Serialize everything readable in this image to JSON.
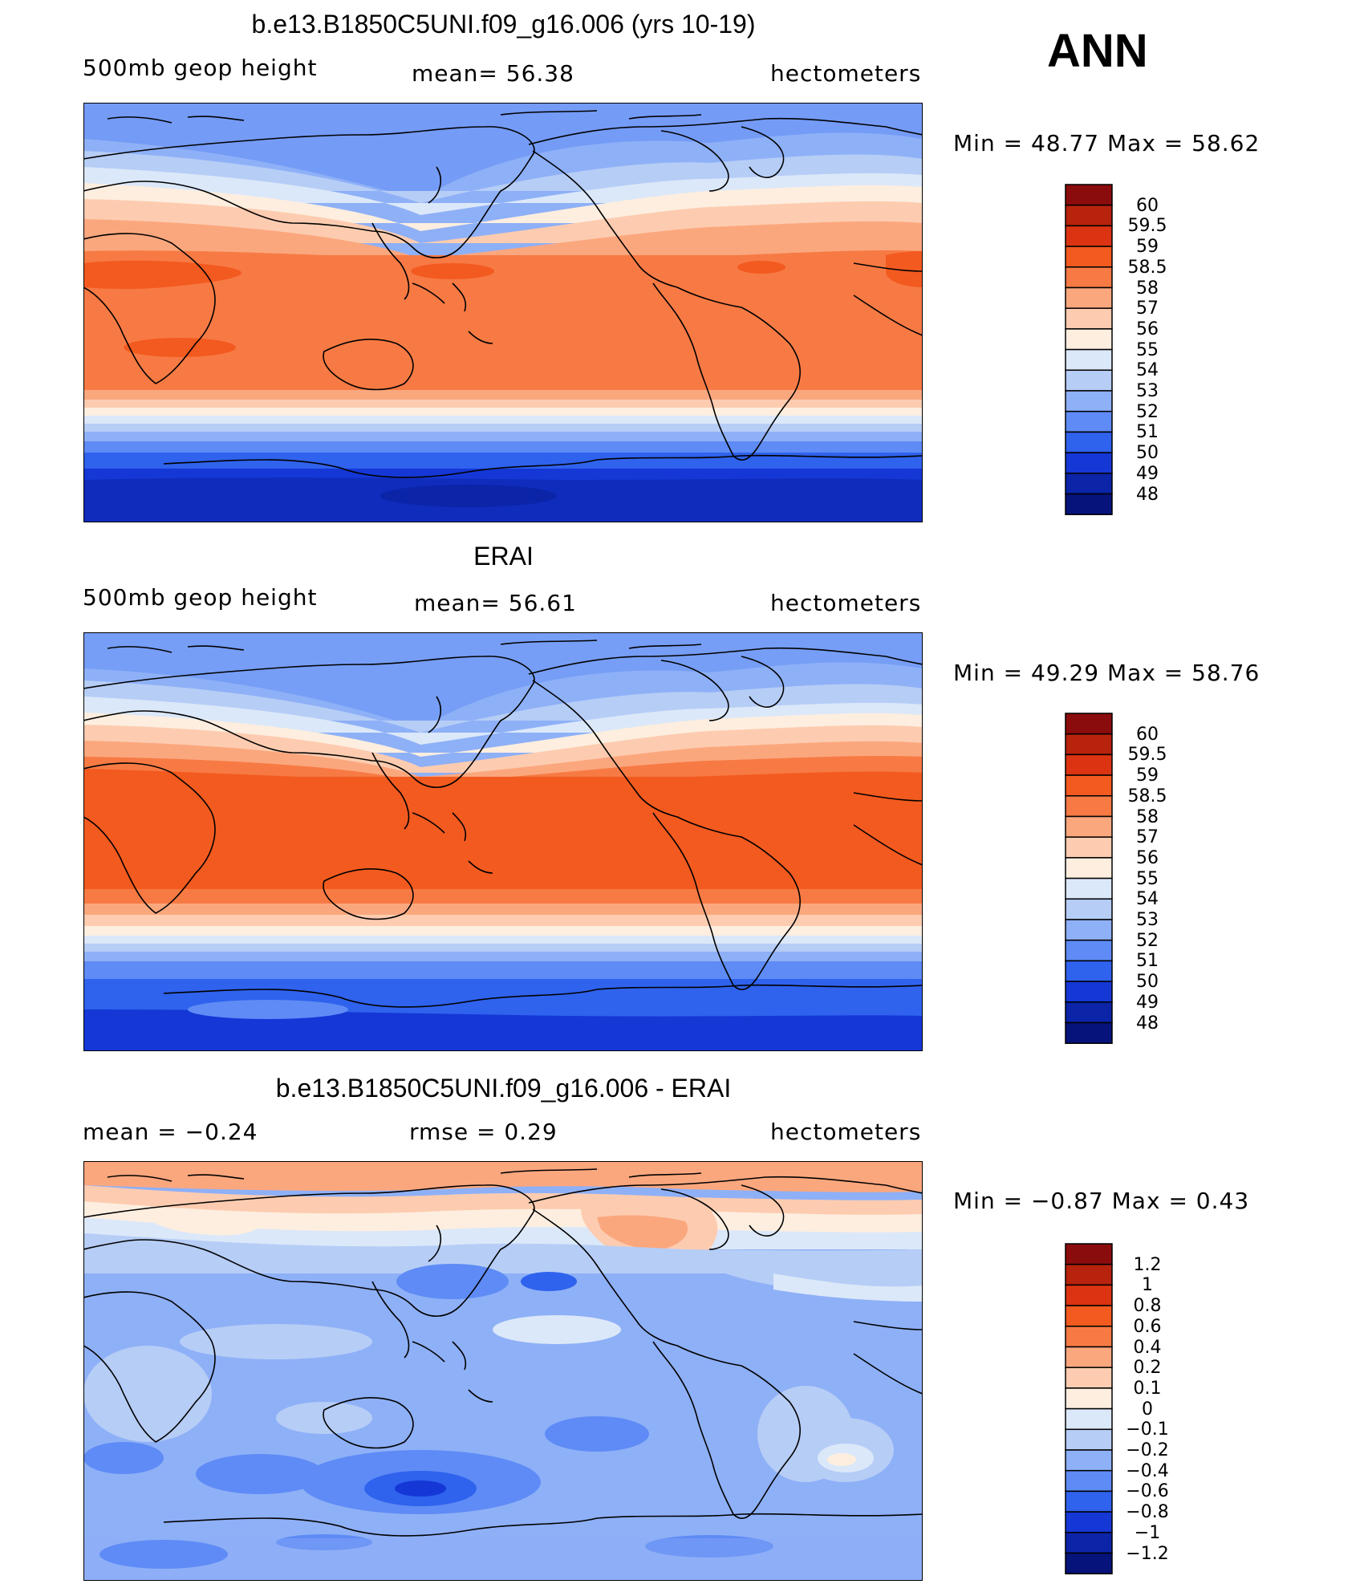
{
  "season": "ANN",
  "panels": [
    {
      "title": "b.e13.B1850C5UNI.f09_g16.006 (yrs 10-19)",
      "left_label": "500mb  geop  height",
      "center_label": "mean=   56.38",
      "right_label": "hectometers",
      "minmax": "Min  =    48.77  Max  =    58.62",
      "colorbar": {
        "labels": [
          "60",
          "59.5",
          "59",
          "58.5",
          "58",
          "57",
          "56",
          "55",
          "54",
          "53",
          "52",
          "51",
          "50",
          "49",
          "48"
        ],
        "colors": [
          "#8b0c0c",
          "#b8230d",
          "#dc3412",
          "#f35a1f",
          "#f77a44",
          "#fba77e",
          "#fdccb0",
          "#fdeedf",
          "#dbe8f9",
          "#b6cdf6",
          "#8eb0f7",
          "#5e8bf5",
          "#2f62ed",
          "#1437d6",
          "#0b24a8",
          "#06137a"
        ]
      }
    },
    {
      "title": "ERAI",
      "left_label": "500mb  geop  height",
      "center_label": "mean=   56.61",
      "right_label": "hectometers",
      "minmax": "Min  =    49.29  Max  =    58.76",
      "colorbar": {
        "labels": [
          "60",
          "59.5",
          "59",
          "58.5",
          "58",
          "57",
          "56",
          "55",
          "54",
          "53",
          "52",
          "51",
          "50",
          "49",
          "48"
        ],
        "colors": [
          "#8b0c0c",
          "#b8230d",
          "#dc3412",
          "#f35a1f",
          "#f77a44",
          "#fba77e",
          "#fdccb0",
          "#fdeedf",
          "#dbe8f9",
          "#b6cdf6",
          "#8eb0f7",
          "#5e8bf5",
          "#2f62ed",
          "#1437d6",
          "#0b24a8",
          "#06137a"
        ]
      }
    },
    {
      "title": "b.e13.B1850C5UNI.f09_g16.006 - ERAI",
      "left_label": "mean  =    −0.24",
      "center_label": "rmse  =      0.29",
      "right_label": "hectometers",
      "minmax": "Min  =    −0.87  Max  =       0.43",
      "colorbar": {
        "labels": [
          "1.2",
          "1",
          "0.8",
          "0.6",
          "0.4",
          "0.2",
          "0.1",
          "0",
          "−0.1",
          "−0.2",
          "−0.4",
          "−0.6",
          "−0.8",
          "−1",
          "−1.2"
        ],
        "colors": [
          "#8b0c0c",
          "#b8230d",
          "#dc3412",
          "#f35a1f",
          "#f77a44",
          "#fba77e",
          "#fdccb0",
          "#fdeedf",
          "#dbe8f9",
          "#b6cdf6",
          "#8eb0f7",
          "#5e8bf5",
          "#2f62ed",
          "#1437d6",
          "#0b24a8",
          "#06137a"
        ]
      }
    }
  ]
}
